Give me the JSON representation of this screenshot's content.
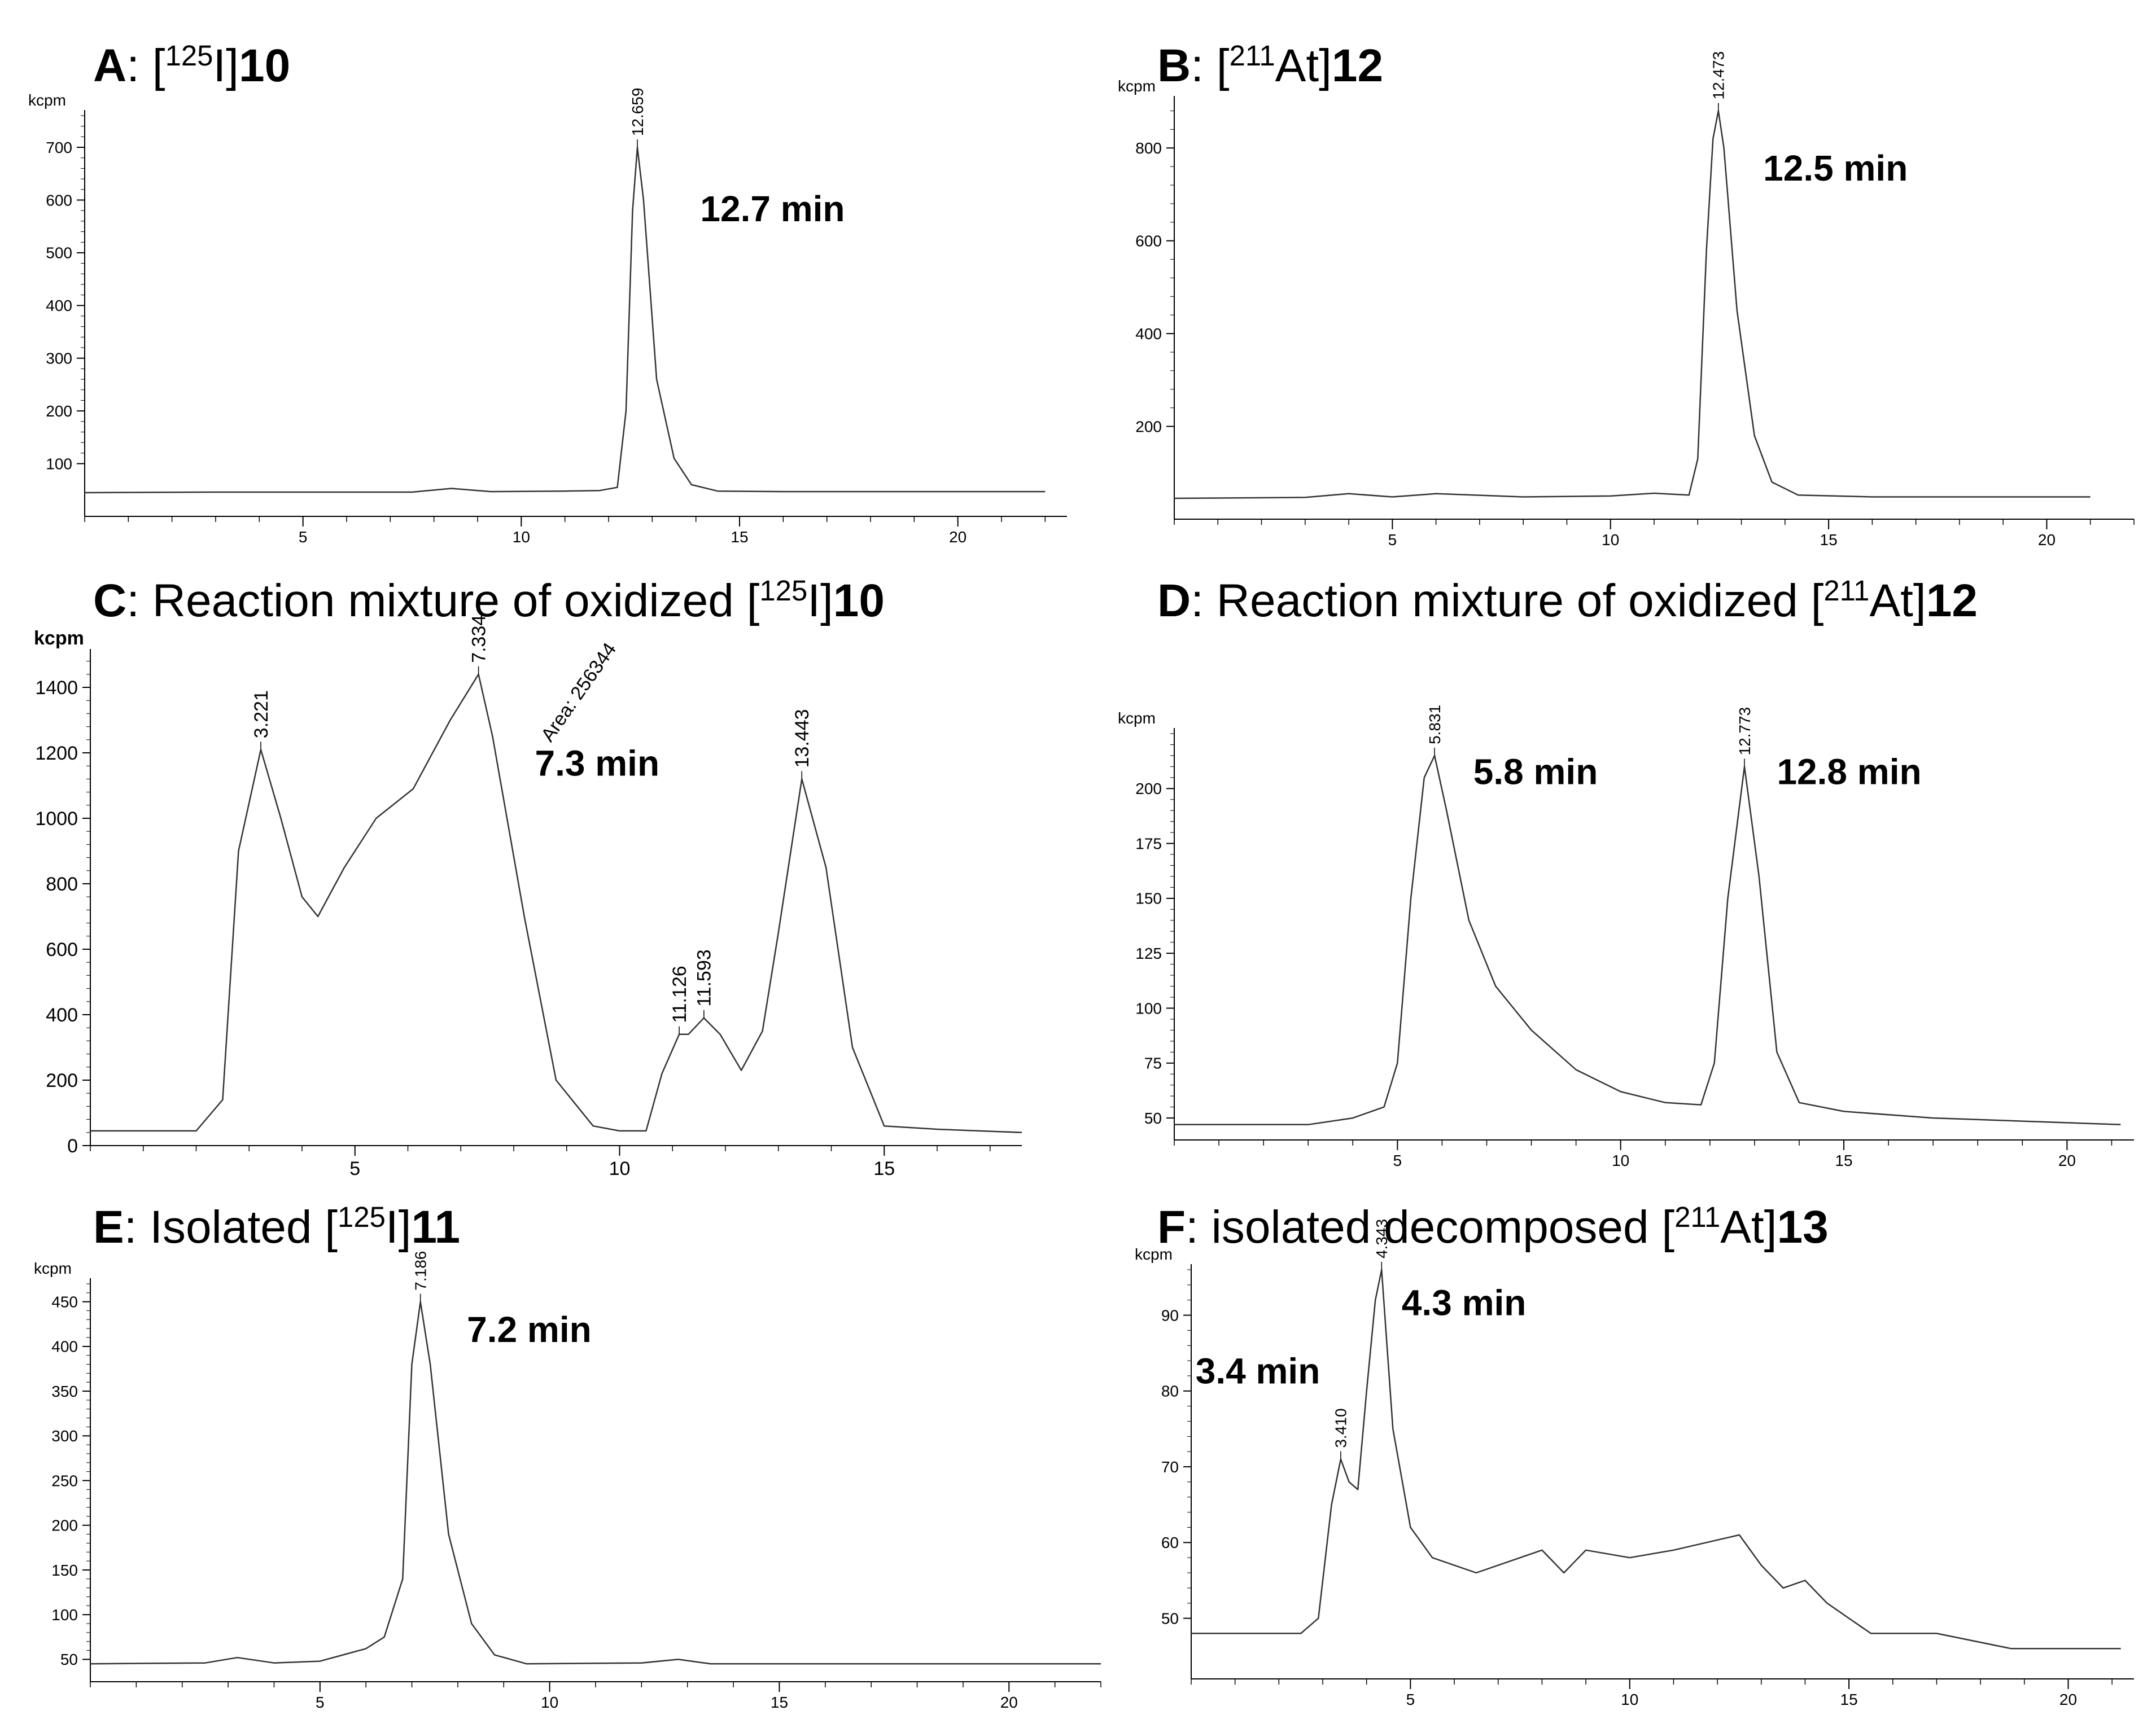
{
  "figure": {
    "panels": [
      {
        "letter": "A",
        "pre": ": [",
        "iso": "125",
        "el": "I]",
        "rest": "",
        "cmp": "10"
      },
      {
        "letter": "B",
        "pre": ": [",
        "iso": "211",
        "el": "At]",
        "rest": "",
        "cmp": "12"
      },
      {
        "letter": "C",
        "pre": ": Reaction mixture of oxidized [",
        "iso": "125",
        "el": "I]",
        "rest": "",
        "cmp": "10"
      },
      {
        "letter": "D",
        "pre": ": Reaction mixture of oxidized [",
        "iso": "211",
        "el": "At]",
        "rest": "",
        "cmp": "12"
      },
      {
        "letter": "E",
        "pre": ": Isolated [",
        "iso": "125",
        "el": "I]",
        "rest": "",
        "cmp": "11"
      },
      {
        "letter": "F",
        "pre": ": isolated decomposed [",
        "iso": "211",
        "el": "At]",
        "rest": "",
        "cmp": "13"
      }
    ]
  },
  "chart_data": [
    {
      "type": "line",
      "title": "A: [125I]10",
      "ylabel": "kcpm",
      "xlabel": "",
      "xlim": [
        0,
        22.5
      ],
      "ylim": [
        0,
        760
      ],
      "xticks": [
        5,
        10,
        15,
        20
      ],
      "yticks": [
        100,
        200,
        300,
        400,
        500,
        600,
        700
      ],
      "x": [
        0,
        3,
        7.5,
        8.4,
        9.3,
        11,
        11.8,
        12.2,
        12.4,
        12.55,
        12.659,
        12.8,
        13.1,
        13.5,
        13.9,
        14.5,
        16,
        22
      ],
      "y": [
        45,
        46,
        46,
        53,
        47,
        48,
        49,
        55,
        200,
        580,
        700,
        600,
        260,
        110,
        60,
        48,
        47,
        47
      ],
      "peak_labels": [
        {
          "x": 12.659,
          "y": 700,
          "text": "12.659"
        }
      ],
      "annotations": [
        {
          "text": "12.7 min",
          "x": 14.1,
          "y": 560
        }
      ]
    },
    {
      "type": "line",
      "title": "B: [211At]12",
      "ylabel": "kcpm",
      "xlabel": "",
      "xlim": [
        0,
        22
      ],
      "ylim": [
        0,
        900
      ],
      "xticks": [
        5,
        10,
        15,
        20
      ],
      "yticks": [
        200,
        400,
        600,
        800
      ],
      "x": [
        0,
        3,
        4,
        5,
        6,
        8,
        10,
        11,
        11.8,
        12.0,
        12.2,
        12.35,
        12.473,
        12.6,
        12.9,
        13.3,
        13.7,
        14.3,
        16,
        21
      ],
      "y": [
        45,
        47,
        55,
        48,
        55,
        48,
        50,
        56,
        52,
        130,
        580,
        820,
        880,
        800,
        450,
        180,
        80,
        52,
        48,
        48
      ],
      "peak_labels": [
        {
          "x": 12.473,
          "y": 880,
          "text": "12.473"
        }
      ],
      "annotations": [
        {
          "text": "12.5 min",
          "x": 13.5,
          "y": 730
        }
      ]
    },
    {
      "type": "line",
      "title": "C: Reaction mixture of oxidized [125I]10",
      "ylabel": "kcpm",
      "xlabel": "",
      "xlim": [
        0,
        17.6
      ],
      "ylim": [
        0,
        1500
      ],
      "xticks": [
        5,
        10,
        15
      ],
      "yticks": [
        0,
        200,
        400,
        600,
        800,
        1000,
        1200,
        1400
      ],
      "x": [
        0,
        1,
        2,
        2.5,
        2.8,
        3.221,
        3.6,
        4.0,
        4.3,
        4.8,
        5.4,
        6.1,
        6.8,
        7.334,
        7.6,
        8.2,
        8.8,
        9.5,
        10.0,
        10.5,
        10.8,
        11.126,
        11.3,
        11.593,
        11.9,
        12.3,
        12.7,
        13.0,
        13.443,
        13.9,
        14.4,
        15.0,
        16.0,
        17.6
      ],
      "y": [
        45,
        45,
        45,
        140,
        900,
        1210,
        1000,
        760,
        700,
        850,
        1000,
        1090,
        1300,
        1440,
        1250,
        700,
        200,
        60,
        45,
        45,
        220,
        340,
        340,
        390,
        340,
        230,
        350,
        650,
        1120,
        850,
        300,
        60,
        50,
        40
      ],
      "peak_labels": [
        {
          "x": 3.221,
          "y": 1210,
          "text": "3.221"
        },
        {
          "x": 7.334,
          "y": 1440,
          "text": "7.334"
        },
        {
          "x": 11.126,
          "y": 340,
          "text": "11.126"
        },
        {
          "x": 11.593,
          "y": 390,
          "text": "11.593"
        },
        {
          "x": 13.443,
          "y": 1120,
          "text": "13.443"
        }
      ],
      "extra_labels": [
        {
          "x": 8.7,
          "y": 1230,
          "text": "Area: 256344"
        }
      ],
      "annotations": [
        {
          "text": "7.3 min",
          "x": 8.4,
          "y": 1130
        }
      ]
    },
    {
      "type": "line",
      "title": "D: Reaction mixture of oxidized [211At]12",
      "ylabel": "kcpm",
      "xlabel": "",
      "xlim": [
        0,
        21.5
      ],
      "ylim": [
        40,
        225
      ],
      "xticks": [
        5,
        10,
        15,
        20
      ],
      "yticks": [
        50,
        75,
        100,
        125,
        150,
        175,
        200
      ],
      "x": [
        0,
        3,
        4,
        4.7,
        5.0,
        5.3,
        5.6,
        5.831,
        6.1,
        6.6,
        7.2,
        8.0,
        9.0,
        10.0,
        11.0,
        11.8,
        12.1,
        12.4,
        12.773,
        13.1,
        13.5,
        14.0,
        15.0,
        17.0,
        21.2
      ],
      "y": [
        47,
        47,
        50,
        55,
        75,
        150,
        205,
        215,
        190,
        140,
        110,
        90,
        72,
        62,
        57,
        56,
        75,
        150,
        210,
        160,
        80,
        57,
        53,
        50,
        47
      ],
      "peak_labels": [
        {
          "x": 5.831,
          "y": 215,
          "text": "5.831"
        },
        {
          "x": 12.773,
          "y": 210,
          "text": "12.773"
        }
      ],
      "annotations": [
        {
          "text": "5.8 min",
          "x": 6.7,
          "y": 202
        },
        {
          "text": "12.8 min",
          "x": 13.5,
          "y": 202
        }
      ]
    },
    {
      "type": "line",
      "title": "E: Isolated [125I]11",
      "ylabel": "kcpm",
      "xlabel": "",
      "xlim": [
        0,
        22
      ],
      "ylim": [
        25,
        470
      ],
      "xticks": [
        5,
        10,
        15,
        20
      ],
      "yticks": [
        50,
        100,
        150,
        200,
        250,
        300,
        350,
        400,
        450
      ],
      "x": [
        0,
        2.5,
        3.2,
        4.0,
        5.0,
        5.5,
        6.0,
        6.4,
        6.8,
        7.0,
        7.186,
        7.4,
        7.8,
        8.3,
        8.8,
        9.5,
        12,
        12.8,
        13.5,
        22
      ],
      "y": [
        45,
        46,
        52,
        46,
        48,
        55,
        62,
        75,
        140,
        380,
        450,
        380,
        190,
        90,
        55,
        45,
        46,
        50,
        45,
        45
      ],
      "peak_labels": [
        {
          "x": 7.186,
          "y": 450,
          "text": "7.186"
        }
      ],
      "annotations": [
        {
          "text": "7.2 min",
          "x": 8.2,
          "y": 405
        }
      ]
    },
    {
      "type": "line",
      "title": "F: isolated decomposed [211At]13",
      "ylabel": "kcpm",
      "xlabel": "",
      "xlim": [
        0,
        21.5
      ],
      "ylim": [
        42,
        96
      ],
      "xticks": [
        5,
        10,
        15,
        20
      ],
      "yticks": [
        50,
        60,
        70,
        80,
        90
      ],
      "x": [
        0,
        2.5,
        2.9,
        3.2,
        3.41,
        3.6,
        3.8,
        4.0,
        4.2,
        4.343,
        4.6,
        5.0,
        5.5,
        6.5,
        7.5,
        8.0,
        8.5,
        9.0,
        10.0,
        11.0,
        12.5,
        13.0,
        13.5,
        14.0,
        14.5,
        15.0,
        15.5,
        17.0,
        18.7,
        21.2
      ],
      "y": [
        48,
        48,
        50,
        65,
        71,
        68,
        67,
        80,
        92,
        96,
        75,
        62,
        58,
        56,
        58,
        59,
        56,
        59,
        58,
        59,
        61,
        57,
        54,
        55,
        52,
        50,
        48,
        48,
        46,
        46
      ],
      "peak_labels": [
        {
          "x": 3.41,
          "y": 71,
          "text": "3.410"
        },
        {
          "x": 4.343,
          "y": 96,
          "text": "4.343"
        }
      ],
      "annotations": [
        {
          "text": "4.3 min",
          "x": 4.8,
          "y": 90
        },
        {
          "text": "3.4 min",
          "x": 0.1,
          "y": 81
        }
      ]
    }
  ]
}
